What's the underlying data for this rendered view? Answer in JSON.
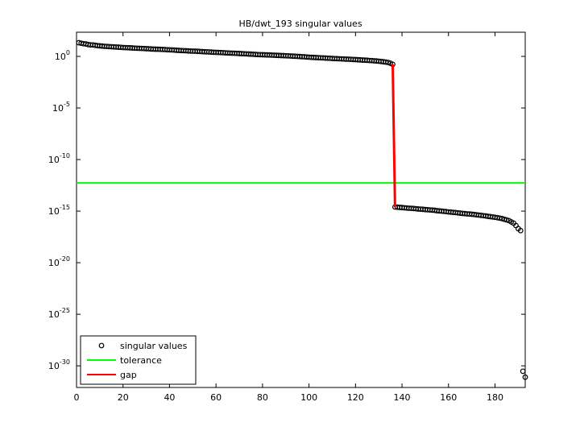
{
  "chart_data": {
    "type": "line",
    "title": "HB/dwt_193 singular values",
    "xlim": [
      0,
      193
    ],
    "xticks": [
      0,
      20,
      40,
      60,
      80,
      100,
      120,
      140,
      160,
      180
    ],
    "ylim": [
      220,
      8e-33
    ],
    "log_y": true,
    "yticks": [
      {
        "value": 1,
        "label": "10^0"
      },
      {
        "value": 1e-05,
        "label": "10^-5"
      },
      {
        "value": 1e-10,
        "label": "10^-10"
      },
      {
        "value": 1e-15,
        "label": "10^-15"
      },
      {
        "value": 1e-20,
        "label": "10^-20"
      },
      {
        "value": 1e-25,
        "label": "10^-25"
      },
      {
        "value": 1e-30,
        "label": "10^-30"
      }
    ],
    "legend": "lower left",
    "series": [
      {
        "name": "singular values",
        "color": "#000000",
        "marker": "circle",
        "x": [
          1,
          2,
          3,
          4,
          5,
          6,
          7,
          8,
          9,
          10,
          11,
          12,
          13,
          14,
          15,
          16,
          17,
          18,
          19,
          20,
          21,
          22,
          23,
          24,
          25,
          26,
          27,
          28,
          29,
          30,
          31,
          32,
          33,
          34,
          35,
          36,
          37,
          38,
          39,
          40,
          41,
          42,
          43,
          44,
          45,
          46,
          47,
          48,
          49,
          50,
          51,
          52,
          53,
          54,
          55,
          56,
          57,
          58,
          59,
          60,
          61,
          62,
          63,
          64,
          65,
          66,
          67,
          68,
          69,
          70,
          71,
          72,
          73,
          74,
          75,
          76,
          77,
          78,
          79,
          80,
          81,
          82,
          83,
          84,
          85,
          86,
          87,
          88,
          89,
          90,
          91,
          92,
          93,
          94,
          95,
          96,
          97,
          98,
          99,
          100,
          101,
          102,
          103,
          104,
          105,
          106,
          107,
          108,
          109,
          110,
          111,
          112,
          113,
          114,
          115,
          116,
          117,
          118,
          119,
          120,
          121,
          122,
          123,
          124,
          125,
          126,
          127,
          128,
          129,
          130,
          131,
          132,
          133,
          134,
          135,
          136,
          137,
          138,
          139,
          140,
          141,
          142,
          143,
          144,
          145,
          146,
          147,
          148,
          149,
          150,
          151,
          152,
          153,
          154,
          155,
          156,
          157,
          158,
          159,
          160,
          161,
          162,
          163,
          164,
          165,
          166,
          167,
          168,
          169,
          170,
          171,
          172,
          173,
          174,
          175,
          176,
          177,
          178,
          179,
          180,
          181,
          182,
          183,
          184,
          185,
          186,
          187,
          188,
          189,
          190,
          191,
          192,
          193
        ],
        "values": [
          21,
          19,
          17,
          16,
          14,
          13,
          13,
          12,
          11,
          10.5,
          10,
          9.5,
          9.3,
          8.9,
          8.7,
          8.3,
          8.1,
          7.8,
          7.6,
          7.2,
          7.1,
          6.9,
          6.8,
          6.5,
          6.3,
          6.2,
          6,
          5.9,
          5.8,
          5.6,
          5.5,
          5.2,
          5.1,
          5,
          4.9,
          4.8,
          4.7,
          4.6,
          4.4,
          4.3,
          4.2,
          4.1,
          3.9,
          3.8,
          3.7,
          3.6,
          3.5,
          3.4,
          3.3,
          3.2,
          3.2,
          3.1,
          3.0,
          2.9,
          2.8,
          2.75,
          2.7,
          2.6,
          2.5,
          2.45,
          2.4,
          2.35,
          2.3,
          2.2,
          2.15,
          2.1,
          2.05,
          2.0,
          1.95,
          1.9,
          1.85,
          1.8,
          1.75,
          1.7,
          1.65,
          1.6,
          1.55,
          1.5,
          1.47,
          1.45,
          1.42,
          1.39,
          1.36,
          1.33,
          1.3,
          1.27,
          1.24,
          1.21,
          1.18,
          1.15,
          1.12,
          1.09,
          1.06,
          1.03,
          1.0,
          0.97,
          0.94,
          0.91,
          0.87,
          0.83,
          0.81,
          0.79,
          0.77,
          0.75,
          0.73,
          0.71,
          0.69,
          0.67,
          0.65,
          0.63,
          0.61,
          0.6,
          0.58,
          0.57,
          0.56,
          0.54,
          0.53,
          0.52,
          0.5,
          0.49,
          0.47,
          0.46,
          0.44,
          0.43,
          0.42,
          0.4,
          0.39,
          0.37,
          0.36,
          0.34,
          0.32,
          0.3,
          0.28,
          0.26,
          0.22,
          0.17,
          2.5e-15,
          2.4e-15,
          2.3e-15,
          2.2e-15,
          2.1e-15,
          2e-15,
          1.9e-15,
          1.85e-15,
          1.8e-15,
          1.7e-15,
          1.6e-15,
          1.55e-15,
          1.5e-15,
          1.4e-15,
          1.35e-15,
          1.3e-15,
          1.25e-15,
          1.2e-15,
          1.1e-15,
          1.05e-15,
          1e-15,
          9.5e-16,
          9e-16,
          8.3e-16,
          8e-16,
          7.6e-16,
          7.2e-16,
          6.8e-16,
          6.4e-16,
          6e-16,
          5.7e-16,
          5.4e-16,
          5.2e-16,
          5e-16,
          4.7e-16,
          4.4e-16,
          4.1e-16,
          3.9e-16,
          3.6e-16,
          3.4e-16,
          3.1e-16,
          2.9e-16,
          2.7e-16,
          2.5e-16,
          2.3e-16,
          2.1e-16,
          1.9e-16,
          1.6e-16,
          1.4e-16,
          1.2e-16,
          9e-17,
          6.8e-17,
          4e-17,
          2e-17,
          1.3e-17,
          3e-31,
          8e-32
        ]
      },
      {
        "name": "tolerance",
        "color": "#00ff00",
        "x": [
          0,
          193
        ],
        "values": [
          5.4e-13,
          5.4e-13
        ]
      },
      {
        "name": "gap",
        "color": "#ff0000",
        "x": [
          136,
          137
        ],
        "values": [
          0.17,
          2.5e-15
        ]
      }
    ]
  }
}
